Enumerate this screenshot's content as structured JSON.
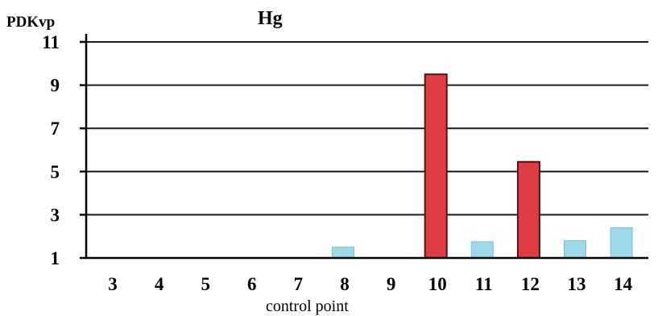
{
  "chart_data": {
    "type": "bar",
    "title": "Hg",
    "ylabel": "PDKvp",
    "xlabel": "control point",
    "categories": [
      "3",
      "4",
      "5",
      "6",
      "7",
      "8",
      "9",
      "10",
      "11",
      "12",
      "13",
      "14"
    ],
    "values": [
      null,
      null,
      null,
      null,
      null,
      1.5,
      null,
      9.5,
      1.75,
      5.45,
      1.8,
      2.4
    ],
    "bar_colors": [
      null,
      null,
      null,
      null,
      null,
      "#9dd9e8",
      null,
      "#e03c43",
      "#9dd9e8",
      "#e03c43",
      "#9dd9e8",
      "#9dd9e8"
    ],
    "ylim": [
      1,
      11
    ],
    "yticks": [
      1,
      3,
      5,
      7,
      9,
      11
    ],
    "grid": true,
    "legend": "none"
  }
}
